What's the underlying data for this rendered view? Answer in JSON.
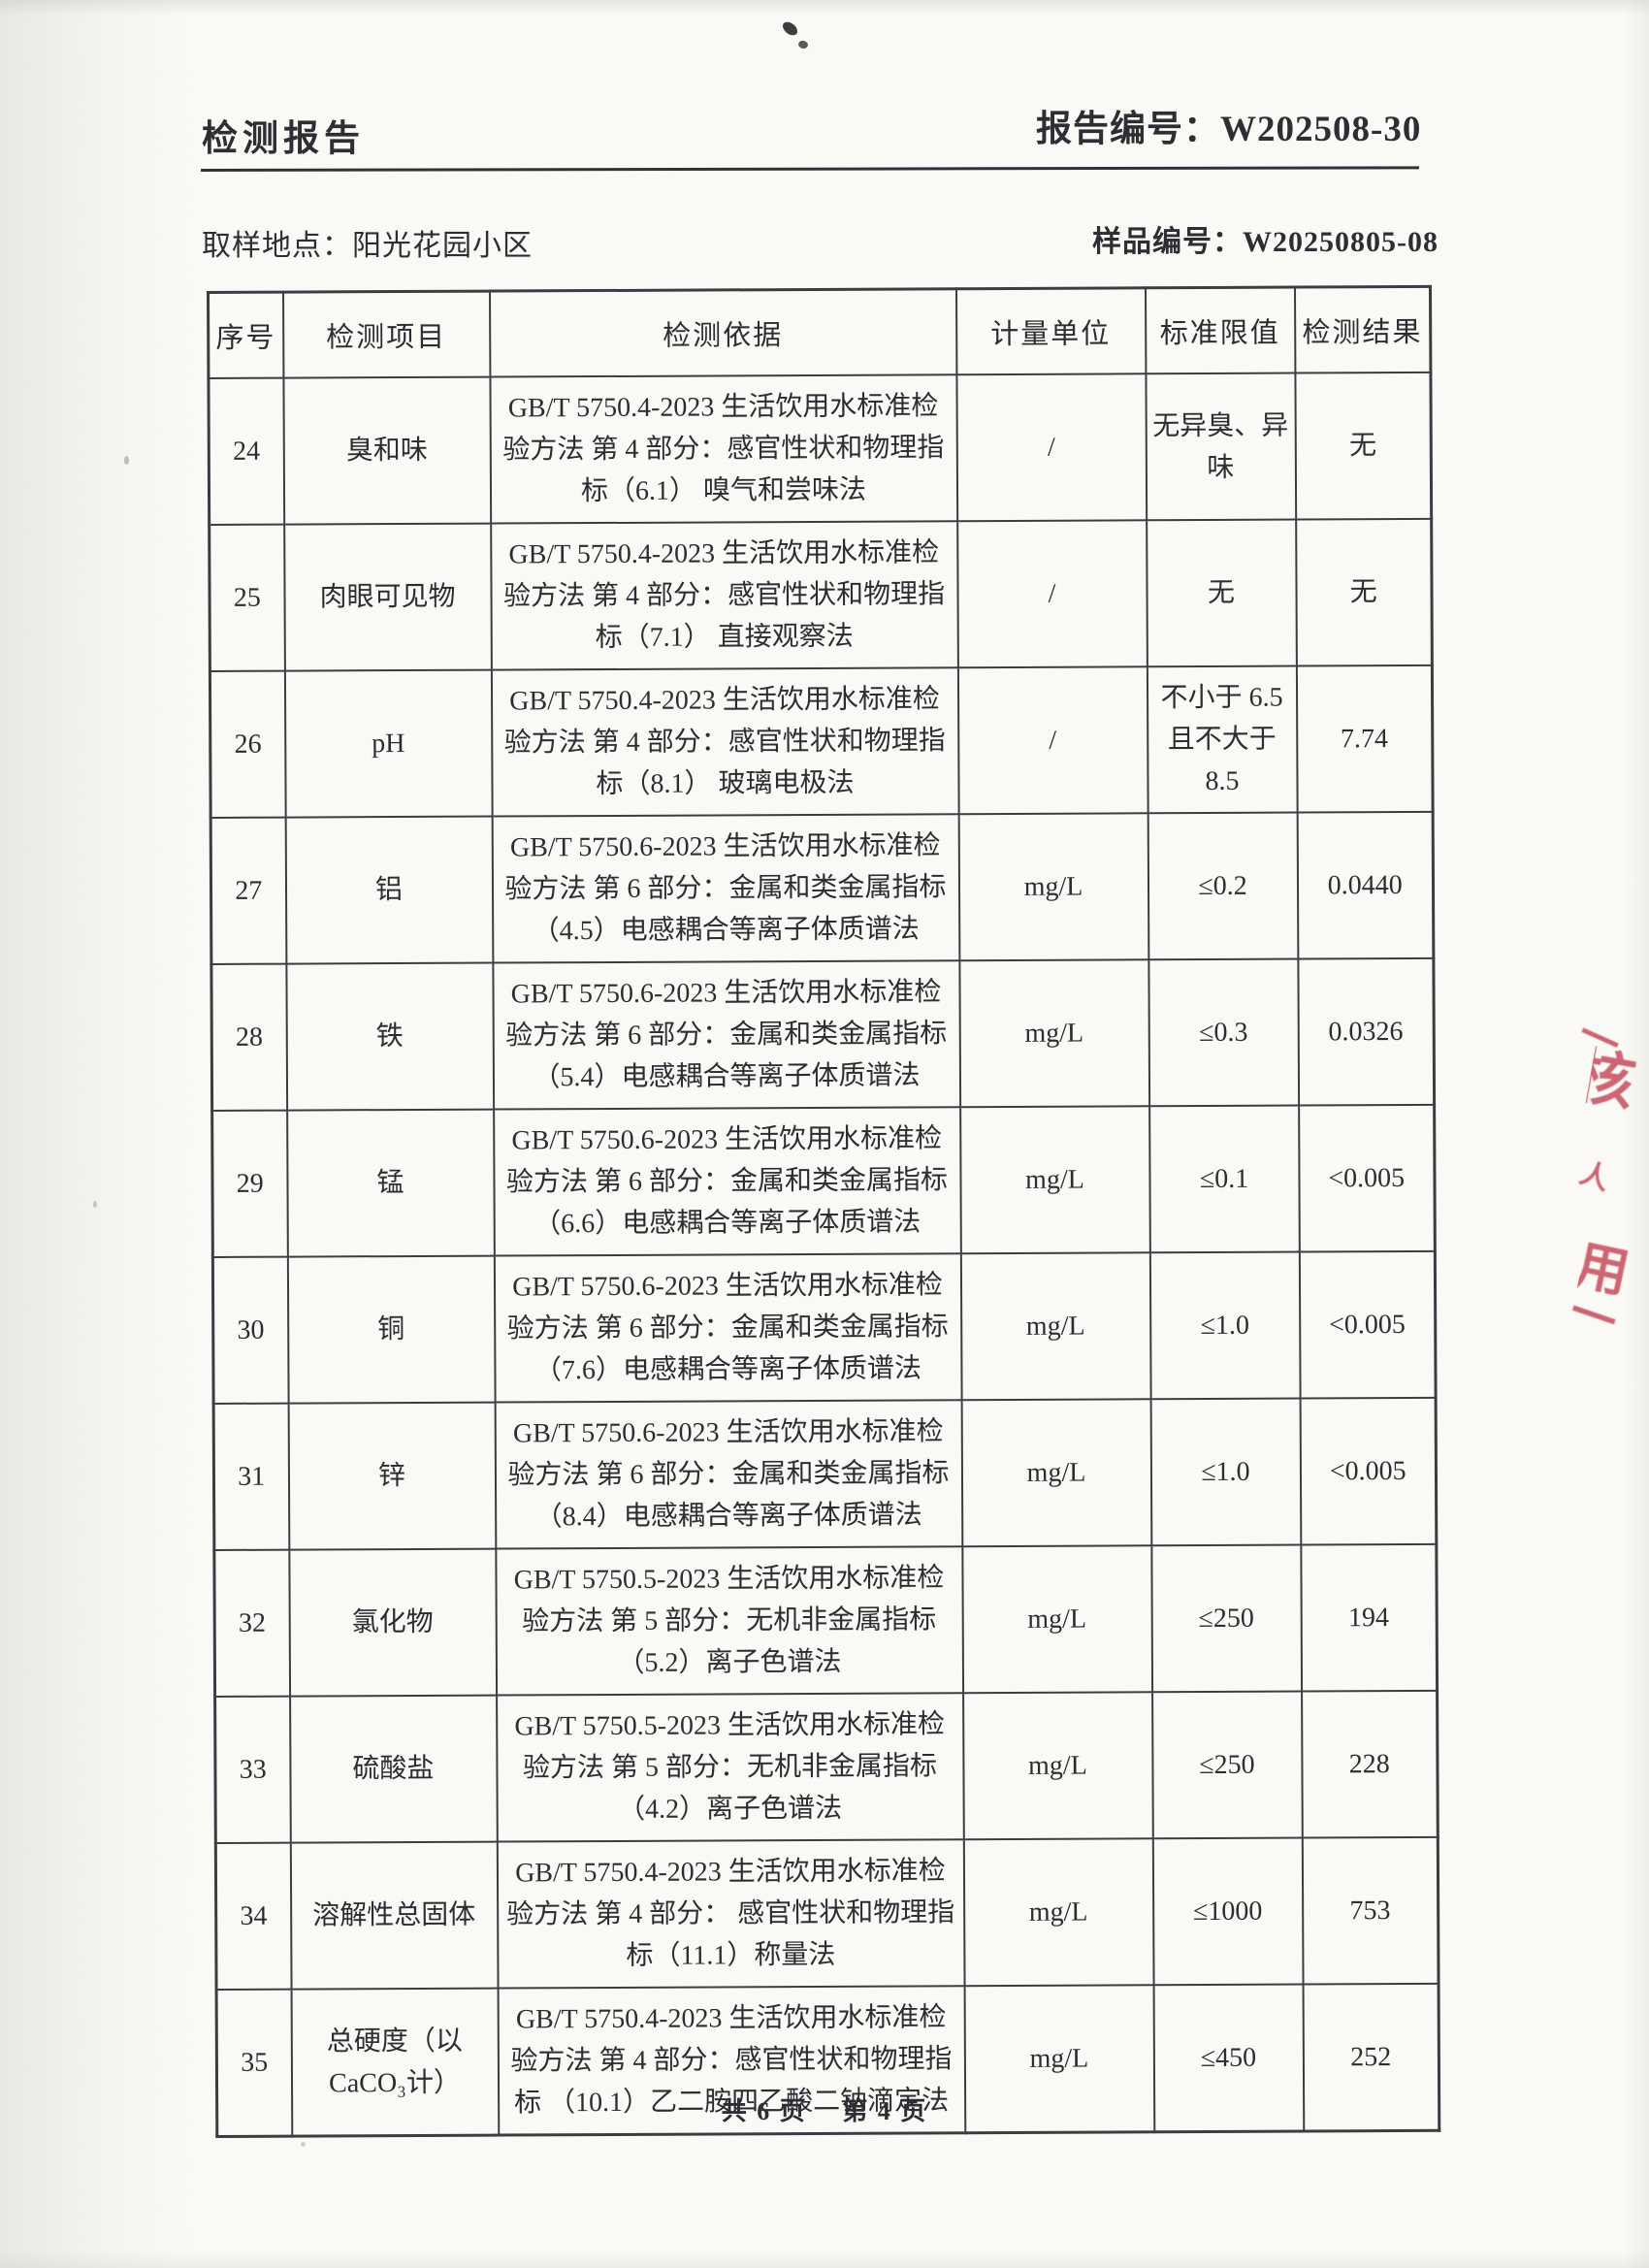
{
  "page": {
    "title": "检测报告",
    "report_no_line": "报告编号：W202508-30",
    "sampling_line": "取样地点：阳光花园小区",
    "sample_no_line": "样品编号：W20250805-08",
    "footer_total": "共 6 页",
    "footer_page": "第 4 页"
  },
  "table": {
    "headers": [
      "序号",
      "检测项目",
      "检测依据",
      "计量单位",
      "标准限值",
      "检测结果"
    ],
    "rows": [
      {
        "no": "24",
        "item": "臭和味",
        "basis": "GB/T 5750.4-2023 生活饮用水标准检验方法 第 4 部分：感官性状和物理指标（6.1） 嗅气和尝味法",
        "unit": "/",
        "limit": "无异臭、异味",
        "result": "无"
      },
      {
        "no": "25",
        "item": "肉眼可见物",
        "basis": "GB/T 5750.4-2023 生活饮用水标准检验方法 第 4 部分：感官性状和物理指标（7.1） 直接观察法",
        "unit": "/",
        "limit": "无",
        "result": "无"
      },
      {
        "no": "26",
        "item": "pH",
        "basis": "GB/T 5750.4-2023 生活饮用水标准检验方法 第 4 部分：感官性状和物理指标（8.1） 玻璃电极法",
        "unit": "/",
        "limit": "不小于 6.5 且不大于 8.5",
        "result": "7.74"
      },
      {
        "no": "27",
        "item": "铝",
        "basis": "GB/T 5750.6-2023 生活饮用水标准检验方法 第 6 部分：金属和类金属指标（4.5）电感耦合等离子体质谱法",
        "unit": "mg/L",
        "limit": "≤0.2",
        "result": "0.0440"
      },
      {
        "no": "28",
        "item": "铁",
        "basis": "GB/T 5750.6-2023 生活饮用水标准检验方法 第 6 部分：金属和类金属指标（5.4）电感耦合等离子体质谱法",
        "unit": "mg/L",
        "limit": "≤0.3",
        "result": "0.0326"
      },
      {
        "no": "29",
        "item": "锰",
        "basis": "GB/T 5750.6-2023 生活饮用水标准检验方法 第 6 部分：金属和类金属指标（6.6）电感耦合等离子体质谱法",
        "unit": "mg/L",
        "limit": "≤0.1",
        "result": "<0.005"
      },
      {
        "no": "30",
        "item": "铜",
        "basis": "GB/T 5750.6-2023 生活饮用水标准检验方法 第 6 部分：金属和类金属指标（7.6）电感耦合等离子体质谱法",
        "unit": "mg/L",
        "limit": "≤1.0",
        "result": "<0.005"
      },
      {
        "no": "31",
        "item": "锌",
        "basis": "GB/T 5750.6-2023 生活饮用水标准检验方法 第 6 部分：金属和类金属指标（8.4）电感耦合等离子体质谱法",
        "unit": "mg/L",
        "limit": "≤1.0",
        "result": "<0.005"
      },
      {
        "no": "32",
        "item": "氯化物",
        "basis": "GB/T 5750.5-2023 生活饮用水标准检验方法 第 5 部分：无机非金属指标（5.2）离子色谱法",
        "unit": "mg/L",
        "limit": "≤250",
        "result": "194"
      },
      {
        "no": "33",
        "item": "硫酸盐",
        "basis": "GB/T 5750.5-2023 生活饮用水标准检验方法 第 5 部分：无机非金属指标（4.2）离子色谱法",
        "unit": "mg/L",
        "limit": "≤250",
        "result": "228"
      },
      {
        "no": "34",
        "item": "溶解性总固体",
        "basis": "GB/T 5750.4-2023 生活饮用水标准检验方法 第 4 部分： 感官性状和物理指标（11.1）称量法",
        "unit": "mg/L",
        "limit": "≤1000",
        "result": "753"
      },
      {
        "no": "35",
        "item": "总硬度（以CaCO₃计）",
        "basis": "GB/T 5750.4-2023 生活饮用水标准检验方法 第 4 部分：感官性状和物理指标 （10.1）乙二胺四乙酸二钠滴定法",
        "unit": "mg/L",
        "limit": "≤450",
        "result": "252"
      }
    ]
  },
  "stamp": {
    "color": "#c6505f",
    "fragments": [
      "一",
      "核",
      "人",
      "用",
      "一"
    ]
  }
}
